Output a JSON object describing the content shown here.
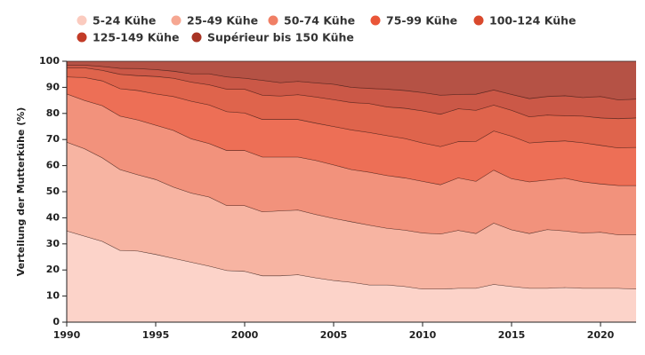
{
  "chart_data": {
    "type": "stacked-area",
    "y_label": "Verteilung der Mutterkühe (%)",
    "x": [
      1990,
      1991,
      1992,
      1993,
      1994,
      1995,
      1996,
      1997,
      1998,
      1999,
      2000,
      2001,
      2002,
      2003,
      2004,
      2005,
      2006,
      2007,
      2008,
      2009,
      2010,
      2011,
      2012,
      2013,
      2014,
      2015,
      2016,
      2017,
      2018,
      2019,
      2020,
      2021,
      2022
    ],
    "xlim": [
      1990,
      2022
    ],
    "xticks": [
      1990,
      1995,
      2000,
      2005,
      2010,
      2015,
      2020
    ],
    "ylim": [
      0,
      100
    ],
    "yticks": [
      0,
      10,
      20,
      30,
      40,
      50,
      60,
      70,
      80,
      90,
      100
    ],
    "series": [
      {
        "name": "5-24 Kühe",
        "color": "#fbcbbf",
        "values": [
          35,
          33,
          31,
          27.5,
          27.3,
          26,
          24.5,
          23,
          21.5,
          19.8,
          19.5,
          17.8,
          17.8,
          18.2,
          17,
          16,
          15.3,
          14.3,
          14.3,
          13.7,
          12.7,
          12.7,
          13,
          13,
          14.5,
          13.7,
          13,
          13,
          13.3,
          13,
          13,
          13,
          12.7
        ]
      },
      {
        "name": "25-49 Kühe",
        "color": "#f6a792",
        "values": [
          34,
          33.5,
          32,
          31,
          29.2,
          28.7,
          27.3,
          26.5,
          26.5,
          24.9,
          25.2,
          24.5,
          24.9,
          24.8,
          24.3,
          23.8,
          23.2,
          22.9,
          21.7,
          21.6,
          21.5,
          21.1,
          22.2,
          21,
          23.5,
          21.7,
          21,
          22.5,
          21.7,
          21.2,
          21.5,
          20.5,
          20.8
        ]
      },
      {
        "name": "50-74 Kühe",
        "color": "#f07f65",
        "values": [
          18.5,
          18.5,
          20,
          20.5,
          21,
          20.8,
          21.7,
          20.8,
          20.5,
          21.1,
          21.1,
          21,
          20.6,
          20.3,
          20.7,
          20.5,
          20,
          20.3,
          20.2,
          20,
          19.8,
          18.9,
          20.1,
          20,
          20.3,
          19.6,
          19.8,
          19,
          20.2,
          19.6,
          18.5,
          18.9,
          18.9
        ]
      },
      {
        "name": "75-99 Kühe",
        "color": "#ea5638",
        "values": [
          6.5,
          8.8,
          9.5,
          10.5,
          11.3,
          12,
          13,
          14.4,
          14.8,
          14.9,
          14.4,
          14.4,
          14.4,
          14.4,
          14.3,
          14.7,
          15.2,
          15.2,
          15.3,
          15.1,
          14.7,
          14.6,
          13.9,
          15.3,
          15,
          16.3,
          14.9,
          14.7,
          14.3,
          15,
          14.8,
          14.4,
          14.6
        ]
      },
      {
        "name": "100-124 Kühe",
        "color": "#d9492d",
        "values": [
          3.5,
          3.7,
          4,
          5.5,
          5.7,
          6.7,
          7,
          7.3,
          7.7,
          8.6,
          9.1,
          9.3,
          9,
          9.5,
          10,
          10.3,
          10.5,
          11.1,
          11,
          11.6,
          12.3,
          12.4,
          12.6,
          11.9,
          9.9,
          9.9,
          10,
          10.2,
          9.6,
          10.2,
          10.5,
          11.2,
          11.3
        ]
      },
      {
        "name": "125-149 Kühe",
        "color": "#c23b27",
        "values": [
          1,
          1,
          1.5,
          2.3,
          2.7,
          2.6,
          2.7,
          3.2,
          4.2,
          4.7,
          4.2,
          5.7,
          5.1,
          5.1,
          5.4,
          5.9,
          5.8,
          5.8,
          6.8,
          6.8,
          7,
          7.3,
          5.5,
          6.2,
          5.8,
          6.1,
          7,
          7.1,
          7.7,
          7.1,
          8.2,
          7.2,
          7.2
        ]
      },
      {
        "name": "Supérieur bis 150 Kühe",
        "color": "#a83424",
        "values": [
          1.5,
          1.5,
          2,
          2.7,
          2.8,
          3.2,
          3.8,
          4.8,
          4.8,
          6,
          6.5,
          7.3,
          8.2,
          7.7,
          8.3,
          8.8,
          10,
          10.4,
          10.7,
          11.2,
          12,
          13,
          12.7,
          12.6,
          11,
          12.7,
          14.3,
          13.5,
          13.2,
          13.9,
          13.5,
          14.8,
          14.5
        ]
      }
    ]
  }
}
